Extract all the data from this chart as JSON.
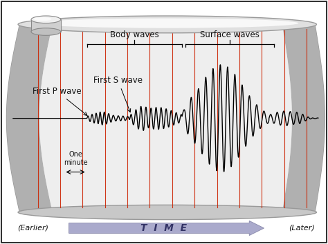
{
  "bg_color": "#ffffff",
  "text_color": "#111111",
  "wave_color": "#000000",
  "red_line_color": "#cc2200",
  "paper_main": "#d4d4d4",
  "paper_light": "#f0f0f0",
  "paper_edge_left": "#aaaaaa",
  "paper_edge_right": "#aaaaaa",
  "arrow_fill": "#aaaacc",
  "arrow_edge": "#8888aa",
  "time_text_color": "#333366",
  "labels": {
    "body_waves": "Body waves",
    "surface_waves": "Surface waves",
    "first_p": "First P wave",
    "first_s": "First S wave",
    "one_minute": "One\nminute",
    "earlier": "(Earlier)",
    "later": "(Later)",
    "time": "T  I  M  E"
  },
  "figsize": [
    4.74,
    3.54
  ],
  "dpi": 100
}
